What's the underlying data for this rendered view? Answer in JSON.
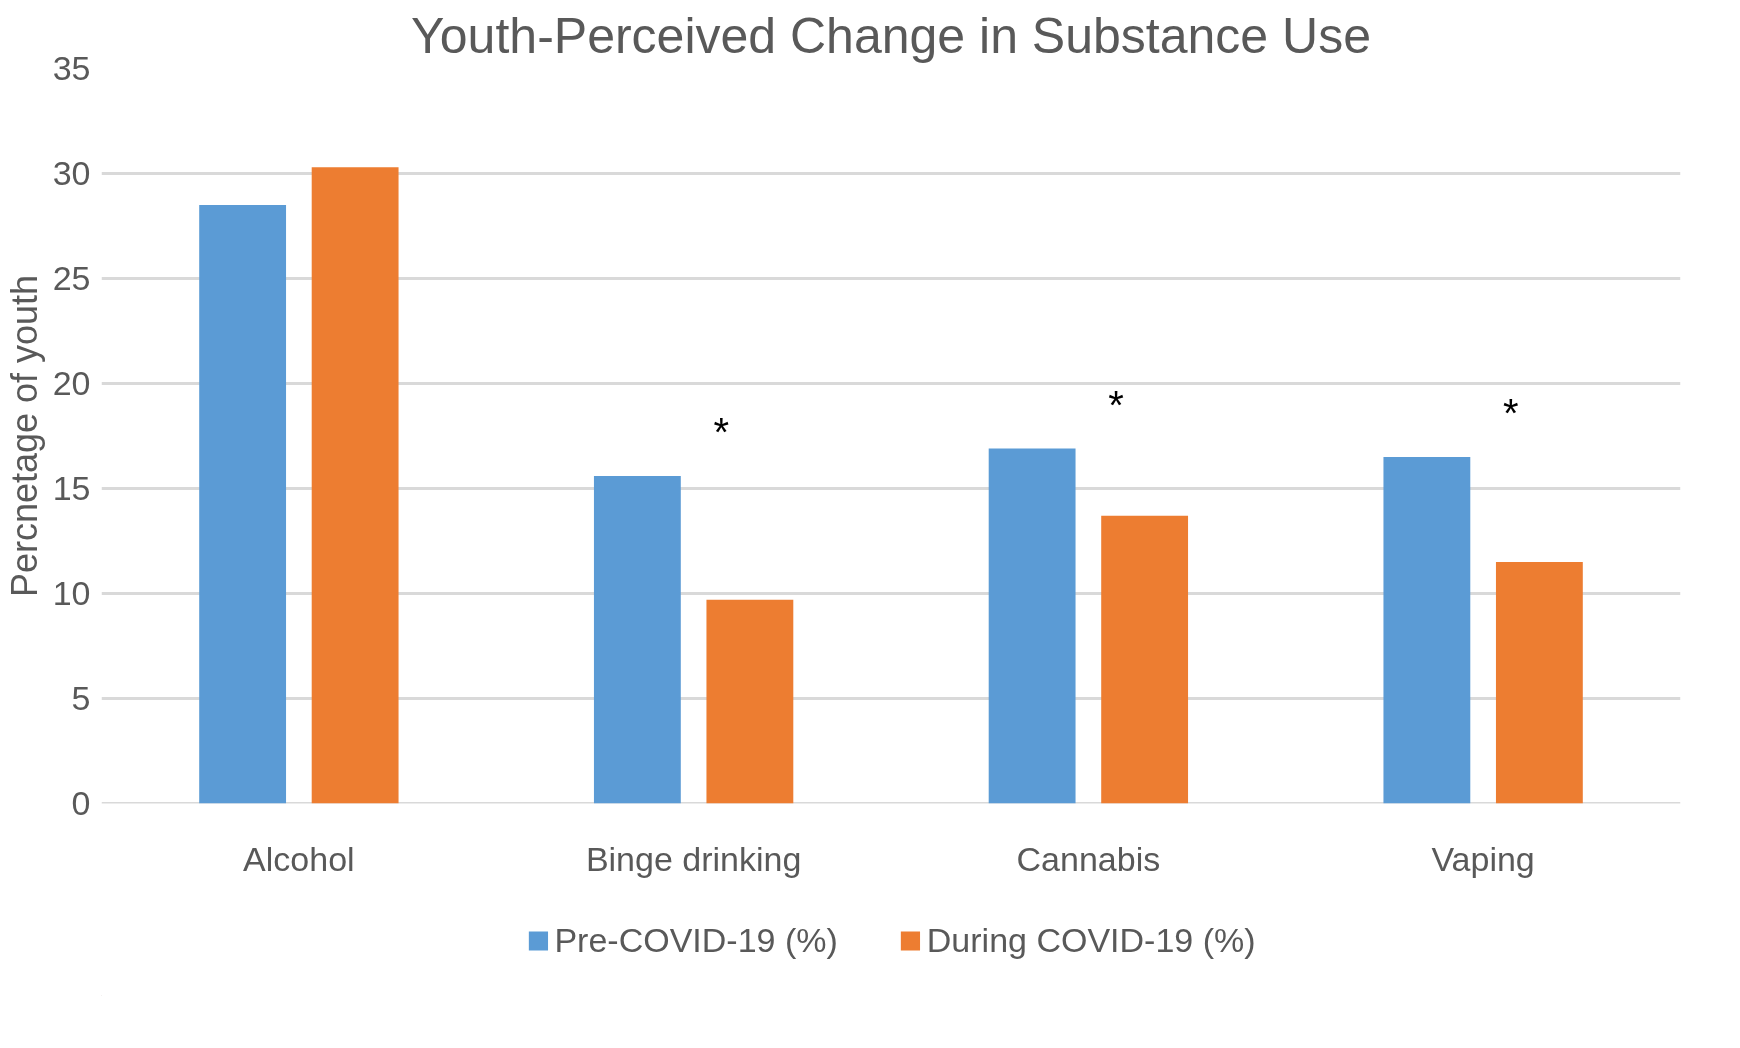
{
  "chart_data": {
    "type": "bar",
    "title": "Youth-Perceived Change in Substance Use",
    "ylabel": "Percnetage of youth",
    "categories": [
      "Alcohol",
      "Binge drinking",
      "Cannabis",
      "Vaping"
    ],
    "series": [
      {
        "name": "Pre-COVID-19 (%)",
        "color": "#5b9bd5",
        "values": [
          28.5,
          15.6,
          16.9,
          16.5
        ]
      },
      {
        "name": "During COVID-19 (%)",
        "color": "#ed7d31",
        "values": [
          30.3,
          9.7,
          13.7,
          11.5
        ]
      }
    ],
    "ylim": [
      0,
      35
    ],
    "yticks": [
      0,
      5,
      10,
      15,
      20,
      25,
      30,
      35
    ],
    "grid": "y",
    "legend": "bottom",
    "annotations": [
      "*",
      "*",
      "*"
    ]
  }
}
